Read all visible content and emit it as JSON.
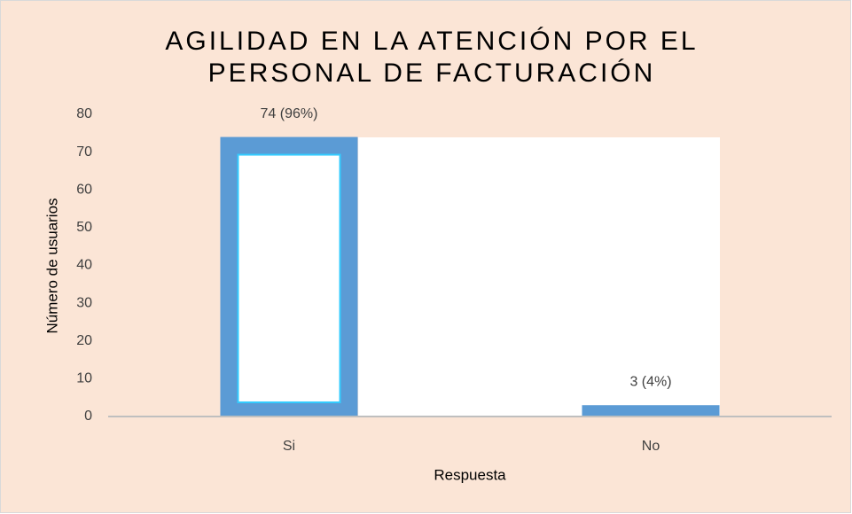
{
  "chart_data": {
    "type": "bar",
    "title": [
      "AGILIDAD EN LA ATENCIÓN POR EL",
      "PERSONAL DE FACTURACIÓN"
    ],
    "x_label": "Respuesta",
    "y_label": "Número de usuarios",
    "categories": [
      "Si",
      "No"
    ],
    "values": [
      74,
      3
    ],
    "value_labels": [
      "74  (96%)",
      "3  (4%)"
    ],
    "color": "#5b9bd5",
    "ylim": [
      0,
      80
    ],
    "yticks": [
      0,
      10,
      20,
      30,
      40,
      50,
      60,
      70,
      80
    ],
    "grid": false
  }
}
